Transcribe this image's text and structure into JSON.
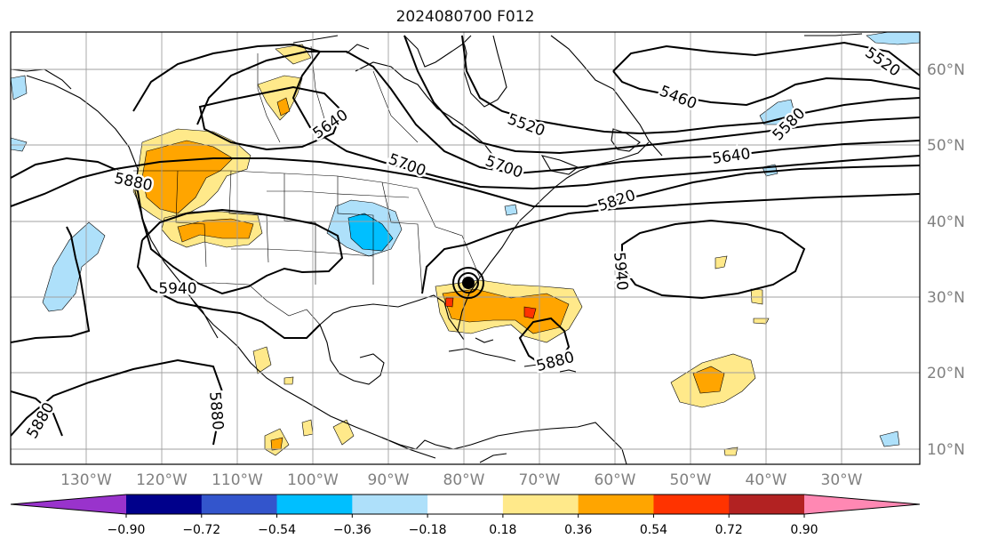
{
  "title": "2024080700 F012",
  "longitude_ticks": [
    "130°W",
    "120°W",
    "110°W",
    "100°W",
    "90°W",
    "80°W",
    "70°W",
    "60°W",
    "50°W",
    "40°W",
    "30°W"
  ],
  "latitude_ticks": [
    "60°N",
    "50°N",
    "40°N",
    "30°N",
    "20°N",
    "10°N"
  ],
  "colorbar": {
    "ticks": [
      "−0.90",
      "−0.72",
      "−0.54",
      "−0.36",
      "−0.18",
      "0.18",
      "0.36",
      "0.54",
      "0.72",
      "0.90"
    ],
    "colors": [
      "#9933cc",
      "#00008b",
      "#3355cc",
      "#00bfff",
      "#aee0fa",
      "#ffffff",
      "#ffe98a",
      "#ffa500",
      "#ff3300",
      "#b22222",
      "#ff88b3"
    ]
  },
  "contour_labels": [
    "5520",
    "5460",
    "5520",
    "5580",
    "5640",
    "5640",
    "5700",
    "5700",
    "5820",
    "5880",
    "5940",
    "5940",
    "5880",
    "5880",
    "5880"
  ],
  "colors": {
    "contour": "#000000",
    "coastline": "#000000",
    "gridline": "#a0a0a0",
    "tick_label": "#808080"
  },
  "legend_note": ""
}
